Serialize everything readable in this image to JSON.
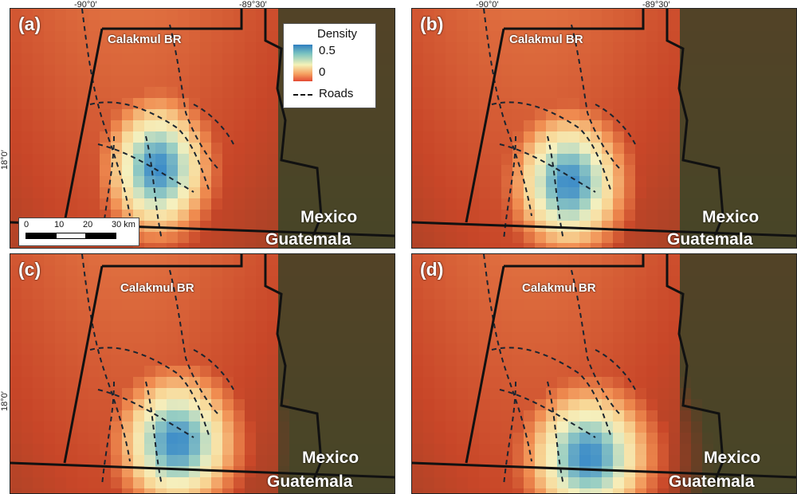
{
  "coordinates": {
    "lon_left": "-90°0′",
    "lon_right": "-89°30′",
    "lat_label": "18°0′"
  },
  "panels": [
    {
      "label": "(a)",
      "density_shift": 0
    },
    {
      "label": "(b)",
      "density_shift": 1
    },
    {
      "label": "(c)",
      "density_shift": 2
    },
    {
      "label": "(d)",
      "density_shift": 3
    }
  ],
  "labels": {
    "reserve": "Calakmul BR",
    "mexico": "Mexico",
    "guatemala": "Guatemala"
  },
  "legend": {
    "title": "Density",
    "max_value": "0.5",
    "min_value": "0",
    "roads": "Roads"
  },
  "scalebar": {
    "ticks": [
      "0",
      "10",
      "20",
      "30 km"
    ]
  },
  "colors": {
    "density_high": "#2e7ec0",
    "density_mid": "#f4f2b8",
    "density_low": "#e34a33",
    "forest": "#2d4a2a",
    "boundary": "#111111"
  }
}
